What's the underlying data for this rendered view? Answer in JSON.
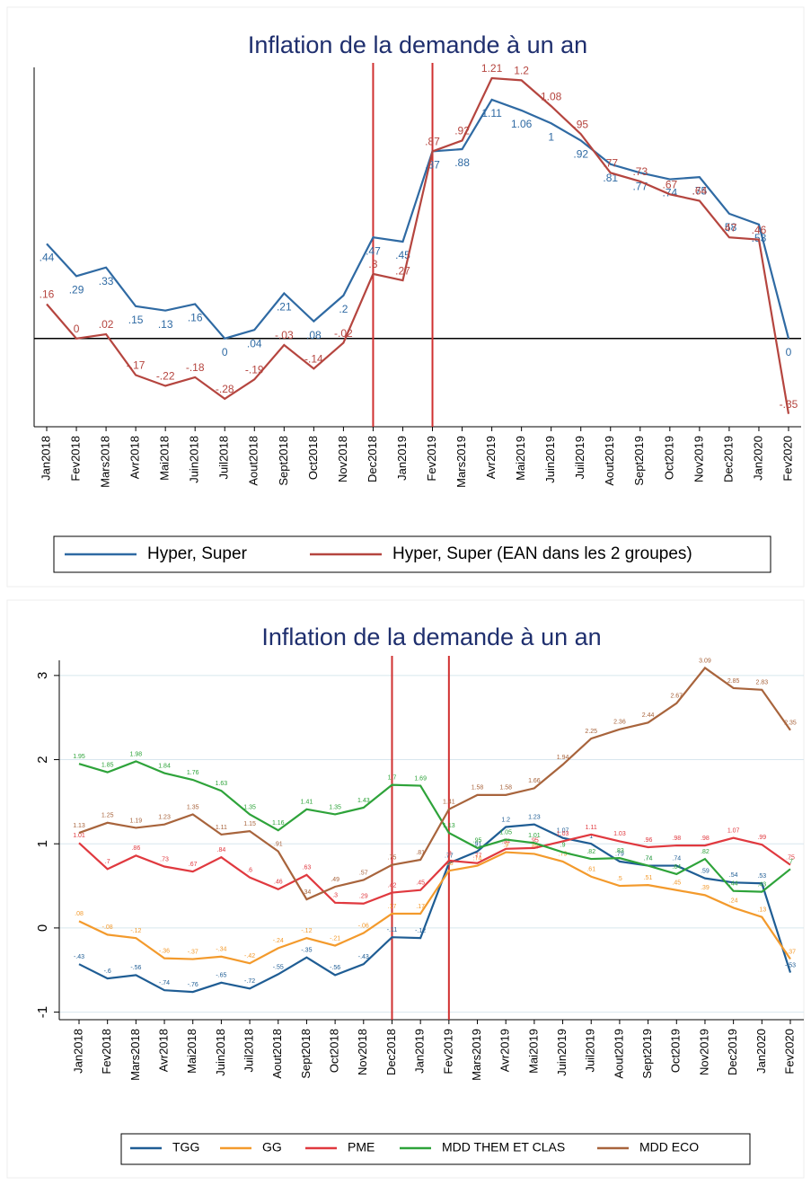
{
  "chart_data": [
    {
      "type": "line",
      "title": "Inflation de la demande à un an",
      "categories": [
        "Jan2018",
        "Fev2018",
        "Mars2018",
        "Avr2018",
        "Mai2018",
        "Juin2018",
        "Juil2018",
        "Aout2018",
        "Sept2018",
        "Oct2018",
        "Nov2018",
        "Dec2018",
        "Jan2019",
        "Fev2019",
        "Mars2019",
        "Avr2019",
        "Mai2019",
        "Juin2019",
        "Juil2019",
        "Aout2019",
        "Sept2019",
        "Oct2019",
        "Nov2019",
        "Dec2019",
        "Jan2020",
        "Fev2020"
      ],
      "series": [
        {
          "name": "Hyper, Super",
          "color": "#2f6aa3",
          "values": [
            0.44,
            0.29,
            0.33,
            0.15,
            0.13,
            0.16,
            0,
            0.04,
            0.21,
            0.08,
            0.2,
            0.47,
            0.45,
            0.87,
            0.88,
            1.11,
            1.06,
            1,
            0.92,
            0.81,
            0.77,
            0.74,
            0.75,
            0.58,
            0.53,
            0
          ],
          "value_labels": [
            ".44",
            ".29",
            ".33",
            ".15",
            ".13",
            ".16",
            "0",
            ".04",
            ".21",
            ".08",
            ".2",
            ".47",
            ".45",
            ".87",
            ".88",
            "1.11",
            "1.06",
            "1",
            ".92",
            ".81",
            ".77",
            ".74",
            ".75",
            ".58",
            ".53",
            "0"
          ]
        },
        {
          "name": "Hyper, Super (EAN dans les 2 groupes)",
          "color": "#b5453f",
          "values": [
            0.16,
            0,
            0.02,
            -0.17,
            -0.22,
            -0.18,
            -0.28,
            -0.19,
            -0.03,
            -0.14,
            -0.02,
            0.3,
            0.27,
            0.87,
            0.92,
            1.21,
            1.2,
            1.08,
            0.95,
            0.77,
            0.73,
            0.67,
            0.64,
            0.47,
            0.46,
            -0.35
          ],
          "value_labels": [
            ".16",
            "0",
            ".02",
            "-.17",
            "-.22",
            "-.18",
            "-.28",
            "-.19",
            "-.03",
            "-.14",
            "-.02",
            ".3",
            ".27",
            ".87",
            ".92",
            "1.21",
            "1.2",
            "1.08",
            ".95",
            ".77",
            ".73",
            ".67",
            ".64",
            ".47",
            ".46",
            "-.35"
          ]
        }
      ],
      "ylim": [
        -0.41,
        1.26
      ],
      "hline": 0,
      "vlines": [
        11,
        13
      ],
      "vline_color": "#d03030",
      "legend": "bottom"
    },
    {
      "type": "line",
      "title": "Inflation de la demande à un an",
      "categories": [
        "Jan2018",
        "Fev2018",
        "Mars2018",
        "Avr2018",
        "Mai2018",
        "Juin2018",
        "Juil2018",
        "Aout2018",
        "Sept2018",
        "Oct2018",
        "Nov2018",
        "Dec2018",
        "Jan2019",
        "Fev2019",
        "Mars2019",
        "Avr2019",
        "Mai2019",
        "Juin2019",
        "Juil2019",
        "Aout2019",
        "Sept2019",
        "Oct2019",
        "Nov2019",
        "Dec2019",
        "Jan2020",
        "Fev2020"
      ],
      "series": [
        {
          "name": "TGG",
          "color": "#1f5d94",
          "values": [
            -0.43,
            -0.6,
            -0.56,
            -0.74,
            -0.76,
            -0.65,
            -0.72,
            -0.55,
            -0.35,
            -0.56,
            -0.43,
            -0.11,
            -0.12,
            0.77,
            0.91,
            1.2,
            1.23,
            1.07,
            1,
            0.79,
            0.74,
            0.74,
            0.59,
            0.54,
            0.53,
            -0.53
          ],
          "value_labels": [
            "-.43",
            "-.6",
            "-.56",
            "-.74",
            "-.76",
            "-.65",
            "-.72",
            "-.55",
            "-.35",
            "-.56",
            "-.43",
            "-.11",
            "-.12",
            ".77",
            ".91",
            "1.2",
            "1.23",
            "1.07",
            "1",
            ".79",
            ".74",
            ".74",
            ".59",
            ".54",
            ".53",
            "-.53"
          ]
        },
        {
          "name": "GG",
          "color": "#f39a2c",
          "values": [
            0.08,
            -0.08,
            -0.12,
            -0.36,
            -0.37,
            -0.34,
            -0.42,
            -0.24,
            -0.12,
            -0.21,
            -0.06,
            0.17,
            0.17,
            0.68,
            0.74,
            0.9,
            0.88,
            0.79,
            0.61,
            0.5,
            0.51,
            0.45,
            0.39,
            0.24,
            0.13,
            -0.37
          ],
          "value_labels": [
            ".08",
            "-.08",
            "-.12",
            "-.36",
            "-.37",
            "-.34",
            "-.42",
            "-.24",
            "-.12",
            "-.21",
            "-.06",
            ".17",
            ".17",
            ".68",
            ".74",
            ".9",
            ".88",
            ".79",
            ".61",
            ".5",
            ".51",
            ".45",
            ".39",
            ".24",
            ".13",
            "-.37"
          ]
        },
        {
          "name": "PME",
          "color": "#e0393f",
          "values": [
            1.01,
            0.7,
            0.86,
            0.73,
            0.67,
            0.84,
            0.6,
            0.46,
            0.63,
            0.3,
            0.29,
            0.42,
            0.45,
            0.8,
            0.77,
            0.94,
            0.95,
            1.03,
            1.11,
            1.03,
            0.96,
            0.98,
            0.98,
            1.07,
            0.99,
            0.75
          ],
          "value_labels": [
            "1.01",
            ".7",
            ".86",
            ".73",
            ".67",
            ".84",
            ".6",
            ".46",
            ".63",
            ".3",
            ".29",
            ".42",
            ".45",
            ".8",
            ".77",
            ".94",
            ".95",
            "1.03",
            "1.11",
            "1.03",
            ".96",
            ".98",
            ".98",
            "1.07",
            ".99",
            ".75"
          ]
        },
        {
          "name": "MDD THEM ET CLAS",
          "color": "#2ea33a",
          "values": [
            1.95,
            1.85,
            1.98,
            1.84,
            1.76,
            1.63,
            1.35,
            1.16,
            1.41,
            1.35,
            1.43,
            1.7,
            1.69,
            1.13,
            0.95,
            1.05,
            1.01,
            0.9,
            0.82,
            0.83,
            0.74,
            0.64,
            0.82,
            0.44,
            0.43,
            0.7
          ],
          "value_labels": [
            "1.95",
            "1.85",
            "1.98",
            "1.84",
            "1.76",
            "1.63",
            "1.35",
            "1.16",
            "1.41",
            "1.35",
            "1.43",
            "1.7",
            "1.69",
            "1.13",
            ".95",
            "1.05",
            "1.01",
            ".9",
            ".82",
            ".83",
            ".74",
            ".64",
            ".82",
            ".44",
            ".43",
            ".7"
          ]
        },
        {
          "name": "MDD ECO",
          "color": "#a8643c",
          "values": [
            1.13,
            1.25,
            1.19,
            1.23,
            1.35,
            1.11,
            1.15,
            0.91,
            0.34,
            0.49,
            0.57,
            0.75,
            0.81,
            1.41,
            1.58,
            1.58,
            1.66,
            1.94,
            2.25,
            2.36,
            2.44,
            2.67,
            3.09,
            2.85,
            2.83,
            2.35
          ],
          "value_labels": [
            "1.13",
            "1.25",
            "1.19",
            "1.23",
            "1.35",
            "1.11",
            "1.15",
            ".91",
            ".34",
            ".49",
            ".57",
            ".75",
            ".81",
            "1.41",
            "1.58",
            "1.58",
            "1.66",
            "1.94",
            "2.25",
            "2.36",
            "2.44",
            "2.67",
            "3.09",
            "2.85",
            "2.83",
            "2.35"
          ]
        }
      ],
      "ylim": [
        -1.09,
        3.18
      ],
      "yticks": [
        -1,
        0,
        1,
        2,
        3
      ],
      "grid": true,
      "vlines": [
        11,
        13
      ],
      "vline_color": "#d03030",
      "legend": "bottom"
    }
  ]
}
